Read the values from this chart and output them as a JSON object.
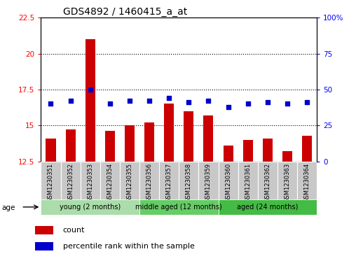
{
  "title": "GDS4892 / 1460415_a_at",
  "samples": [
    "GSM1230351",
    "GSM1230352",
    "GSM1230353",
    "GSM1230354",
    "GSM1230355",
    "GSM1230356",
    "GSM1230357",
    "GSM1230358",
    "GSM1230359",
    "GSM1230360",
    "GSM1230361",
    "GSM1230362",
    "GSM1230363",
    "GSM1230364"
  ],
  "counts": [
    14.1,
    14.7,
    21.0,
    14.6,
    15.0,
    15.2,
    16.5,
    16.0,
    15.7,
    13.6,
    14.0,
    14.1,
    13.2,
    14.3
  ],
  "percentile_vals": [
    40,
    42,
    50,
    40,
    42,
    42,
    44,
    41,
    42,
    38,
    40,
    41,
    40,
    41
  ],
  "ylim_left": [
    12.5,
    22.5
  ],
  "ylim_right": [
    0,
    100
  ],
  "yticks_left": [
    12.5,
    15.0,
    17.5,
    20.0,
    22.5
  ],
  "yticks_right": [
    0,
    25,
    50,
    75,
    100
  ],
  "ytick_labels_left": [
    "12.5",
    "15",
    "17.5",
    "20",
    "22.5"
  ],
  "ytick_labels_right": [
    "0",
    "25",
    "50",
    "75",
    "100%"
  ],
  "groups": [
    {
      "label": "young (2 months)",
      "samples": [
        0,
        1,
        2,
        3,
        4
      ],
      "color": "#aaddaa"
    },
    {
      "label": "middle aged (12 months)",
      "samples": [
        5,
        6,
        7,
        8
      ],
      "color": "#66cc66"
    },
    {
      "label": "aged (24 months)",
      "samples": [
        9,
        10,
        11,
        12,
        13
      ],
      "color": "#44bb44"
    }
  ],
  "bar_color": "#CC0000",
  "dot_color": "#0000CC",
  "bar_width": 0.5,
  "bg_color": "#FFFFFF",
  "cell_bg": "#C8C8C8",
  "legend_count_label": "count",
  "legend_pct_label": "percentile rank within the sample",
  "age_label": "age",
  "title_fontsize": 10,
  "tick_fontsize": 7.5,
  "label_fontsize": 6,
  "group_fontsize": 7
}
